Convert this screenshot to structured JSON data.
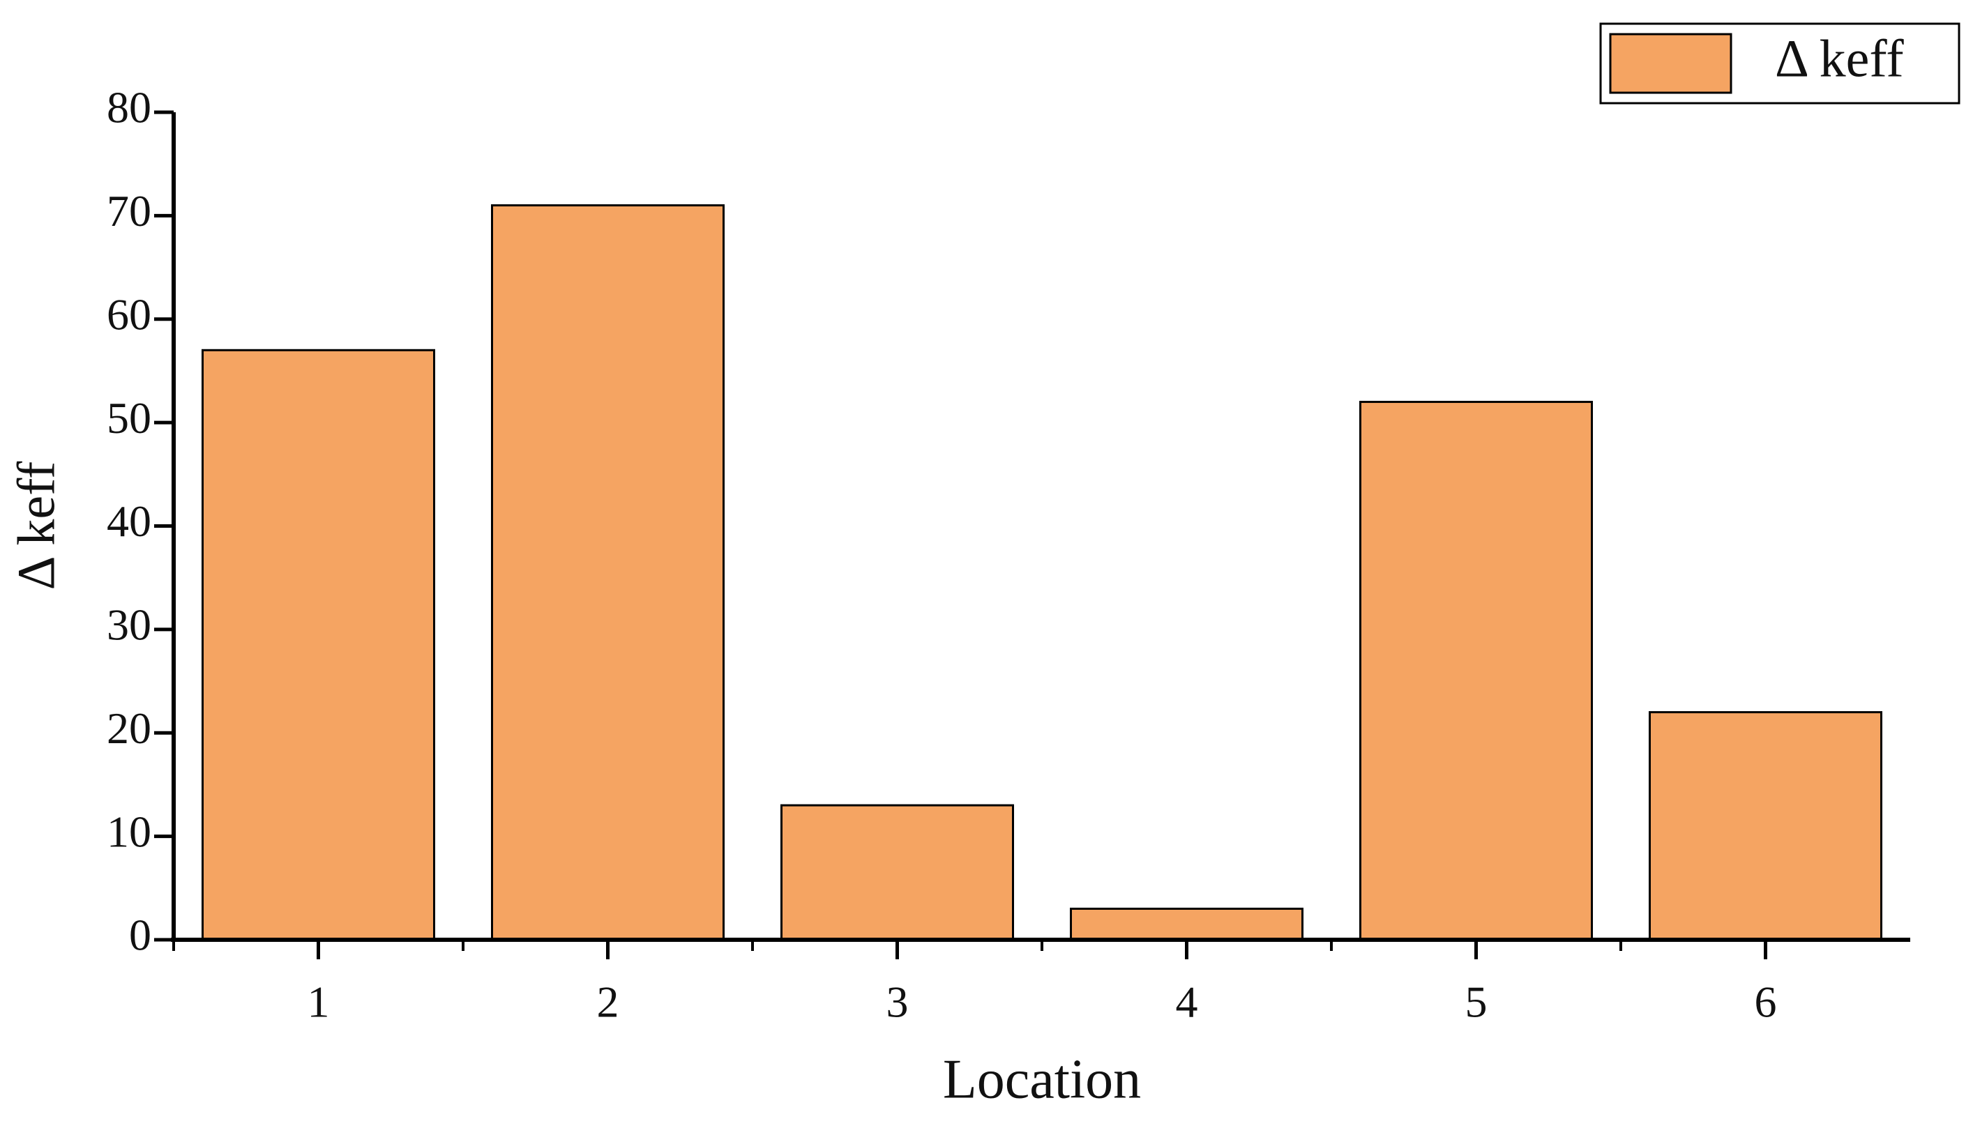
{
  "chart_data": {
    "type": "bar",
    "x_label": "Location",
    "y_label": "Δ keff",
    "categories": [
      "1",
      "2",
      "3",
      "4",
      "5",
      "6"
    ],
    "series": [
      {
        "name": "Δ keff",
        "color": "#f5a462",
        "values": [
          57,
          71,
          13,
          3,
          52,
          22
        ]
      }
    ],
    "ylim": [
      0,
      80
    ],
    "yticks": [
      0,
      10,
      20,
      30,
      40,
      50,
      60,
      70,
      80
    ],
    "grid": false,
    "legend": "top-right"
  }
}
